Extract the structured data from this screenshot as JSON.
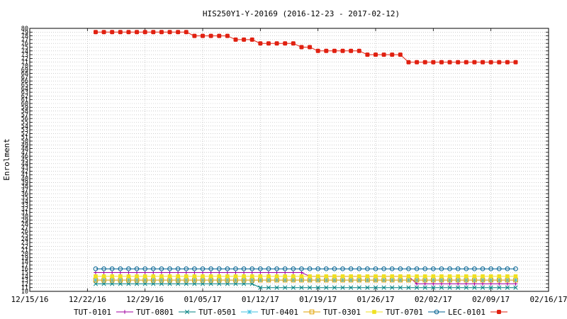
{
  "chart_data": {
    "type": "line",
    "title": "HIS250Y1-Y-20169 (2016-12-23 - 2017-02-12)",
    "xlabel": "",
    "ylabel": "Enrolment",
    "x_start": "2016-12-15",
    "x_end": "2017-02-16",
    "xticks": [
      {
        "date": "2016-12-15",
        "label": "12/15/16"
      },
      {
        "date": "2016-12-22",
        "label": "12/22/16"
      },
      {
        "date": "2016-12-29",
        "label": "12/29/16"
      },
      {
        "date": "2017-01-05",
        "label": "01/05/17"
      },
      {
        "date": "2017-01-12",
        "label": "01/12/17"
      },
      {
        "date": "2017-01-19",
        "label": "01/19/17"
      },
      {
        "date": "2017-01-26",
        "label": "01/26/17"
      },
      {
        "date": "2017-02-02",
        "label": "02/02/17"
      },
      {
        "date": "2017-02-09",
        "label": "02/09/17"
      },
      {
        "date": "2017-02-16",
        "label": "02/16/17"
      }
    ],
    "ylim": [
      10,
      80
    ],
    "ytick_step": 1,
    "grid": true,
    "legend_position": "bottom",
    "series": [
      {
        "name": "TUT-0101",
        "color": "#a000a0",
        "marker": "plus",
        "segments": [
          {
            "from": "2016-12-23",
            "to": "2017-01-17",
            "value": 15
          },
          {
            "from": "2017-01-18",
            "to": "2017-01-30",
            "value": 14
          },
          {
            "from": "2017-01-31",
            "to": "2017-02-12",
            "value": 12
          }
        ]
      },
      {
        "name": "TUT-0801",
        "color": "#008080",
        "marker": "x",
        "segments": [
          {
            "from": "2016-12-23",
            "to": "2017-01-11",
            "value": 12
          },
          {
            "from": "2017-01-12",
            "to": "2017-02-12",
            "value": 11
          }
        ]
      },
      {
        "name": "TUT-0501",
        "color": "#40c0e0",
        "marker": "star",
        "segments": [
          {
            "from": "2016-12-23",
            "to": "2017-02-12",
            "value": 13
          }
        ]
      },
      {
        "name": "TUT-0401",
        "color": "#e0a000",
        "marker": "square-open",
        "segments": [
          {
            "from": "2016-12-23",
            "to": "2017-02-12",
            "value": 13
          }
        ]
      },
      {
        "name": "TUT-0301",
        "color": "#f0e020",
        "marker": "square-filled",
        "segments": [
          {
            "from": "2016-12-23",
            "to": "2017-02-12",
            "value": 14
          }
        ]
      },
      {
        "name": "TUT-0701",
        "color": "#006090",
        "marker": "circle-open",
        "segments": [
          {
            "from": "2016-12-23",
            "to": "2017-02-12",
            "value": 16
          }
        ]
      },
      {
        "name": "LEC-0101",
        "color": "#e02010",
        "marker": "dot-filled",
        "segments": [
          {
            "from": "2016-12-23",
            "to": "2017-01-03",
            "value": 79
          },
          {
            "from": "2017-01-04",
            "to": "2017-01-08",
            "value": 78
          },
          {
            "from": "2017-01-09",
            "to": "2017-01-11",
            "value": 77
          },
          {
            "from": "2017-01-12",
            "to": "2017-01-16",
            "value": 76
          },
          {
            "from": "2017-01-17",
            "to": "2017-01-18",
            "value": 75
          },
          {
            "from": "2017-01-19",
            "to": "2017-01-24",
            "value": 74
          },
          {
            "from": "2017-01-25",
            "to": "2017-01-29",
            "value": 73
          },
          {
            "from": "2017-01-30",
            "to": "2017-02-12",
            "value": 71
          }
        ]
      }
    ]
  }
}
